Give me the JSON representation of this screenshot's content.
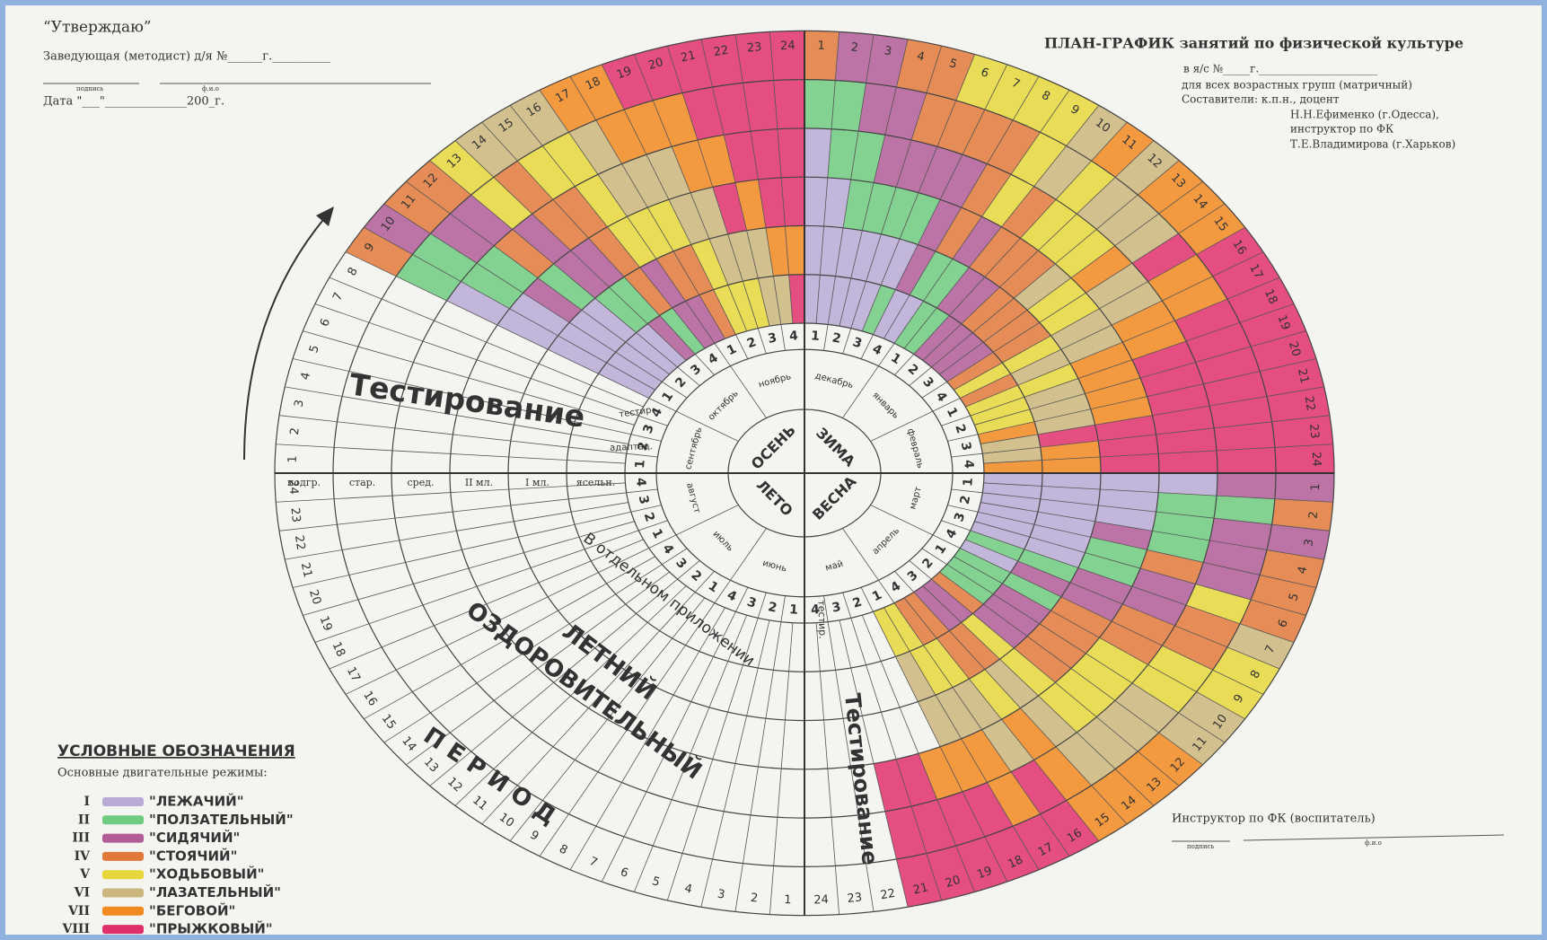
{
  "approval": {
    "title": "“Утверждаю”",
    "head": "Заведующая (методист) д/я №______г.__________",
    "signature": "подпись",
    "name": "ф.и.о",
    "date": "Дата \"___\"______________200_г."
  },
  "header": {
    "title": "ПЛАН-ГРАФИК занятий по физической культуре",
    "kindergarten": "в я/с №_____г.______________________",
    "subtitle": "для всех возрастных групп (матричный)",
    "authors_label": "Составители: к.п.н., доцент",
    "author1": "Н.Н.Ефименко (г.Одесса),",
    "author2_role": "инструктор по ФК",
    "author2": "Т.Е.Владимирова (г.Харьков)"
  },
  "wheel": {
    "seasons": [
      "ЗИМА",
      "ВЕСНА",
      "ЛЕТО",
      "ОСЕНЬ"
    ],
    "months": [
      "декабрь",
      "январь",
      "февраль",
      "март",
      "апрель",
      "май",
      "июнь",
      "июль",
      "август",
      "сентябрь",
      "октябрь",
      "ноябрь"
    ],
    "week_numbers": [
      "1",
      "2",
      "3",
      "4"
    ],
    "lesson_numbers": [
      "1",
      "2",
      "3",
      "4",
      "5",
      "6",
      "7",
      "8",
      "9",
      "10",
      "11",
      "12",
      "13",
      "14",
      "15",
      "16",
      "17",
      "18",
      "19",
      "20",
      "21",
      "22",
      "23",
      "24"
    ],
    "groups": [
      "подгр.",
      "стар.",
      "сред.",
      "II мл.",
      "I мл.",
      "ясельн."
    ],
    "autumn_notes": [
      "тестир.",
      "адаптац."
    ],
    "testing_autumn": "Тестирование",
    "testing_spring": "Тестирование",
    "testing_small": "тестир.",
    "summer_note": "В отдельном приложении",
    "summer_title": [
      "ЛЕТНИЙ",
      "ОЗДОРОВИТЕЛЬНЫЙ",
      "П Е Р И О Д"
    ]
  },
  "legend": {
    "title": "УСЛОВНЫЕ ОБОЗНАЧЕНИЯ",
    "subtitle": "Основные двигательные режимы:",
    "items": [
      {
        "numeral": "I",
        "label": "\"ЛЕЖАЧИЙ\"",
        "color": "#b9aad6"
      },
      {
        "numeral": "II",
        "label": "\"ПОЛЗАТЕЛЬНЫЙ\"",
        "color": "#6fcb80"
      },
      {
        "numeral": "III",
        "label": "\"СИДЯЧИЙ\"",
        "color": "#b25c98"
      },
      {
        "numeral": "IV",
        "label": "\"СТОЯЧИЙ\"",
        "color": "#e2793c"
      },
      {
        "numeral": "V",
        "label": "\"ХОДЬБОВЫЙ\"",
        "color": "#e6d73c"
      },
      {
        "numeral": "VI",
        "label": "\"ЛАЗАТЕЛЬНЫЙ\"",
        "color": "#cbb67e"
      },
      {
        "numeral": "VII",
        "label": "\"БЕГОВОЙ\"",
        "color": "#f28a22"
      },
      {
        "numeral": "VIII",
        "label": "\"ПРЫЖКОВЫЙ\"",
        "color": "#e0306c"
      }
    ]
  },
  "footer": {
    "instructor": "Инструктор по ФК (воспитатель)",
    "signature": "подпись",
    "name": "ф.и.о"
  }
}
